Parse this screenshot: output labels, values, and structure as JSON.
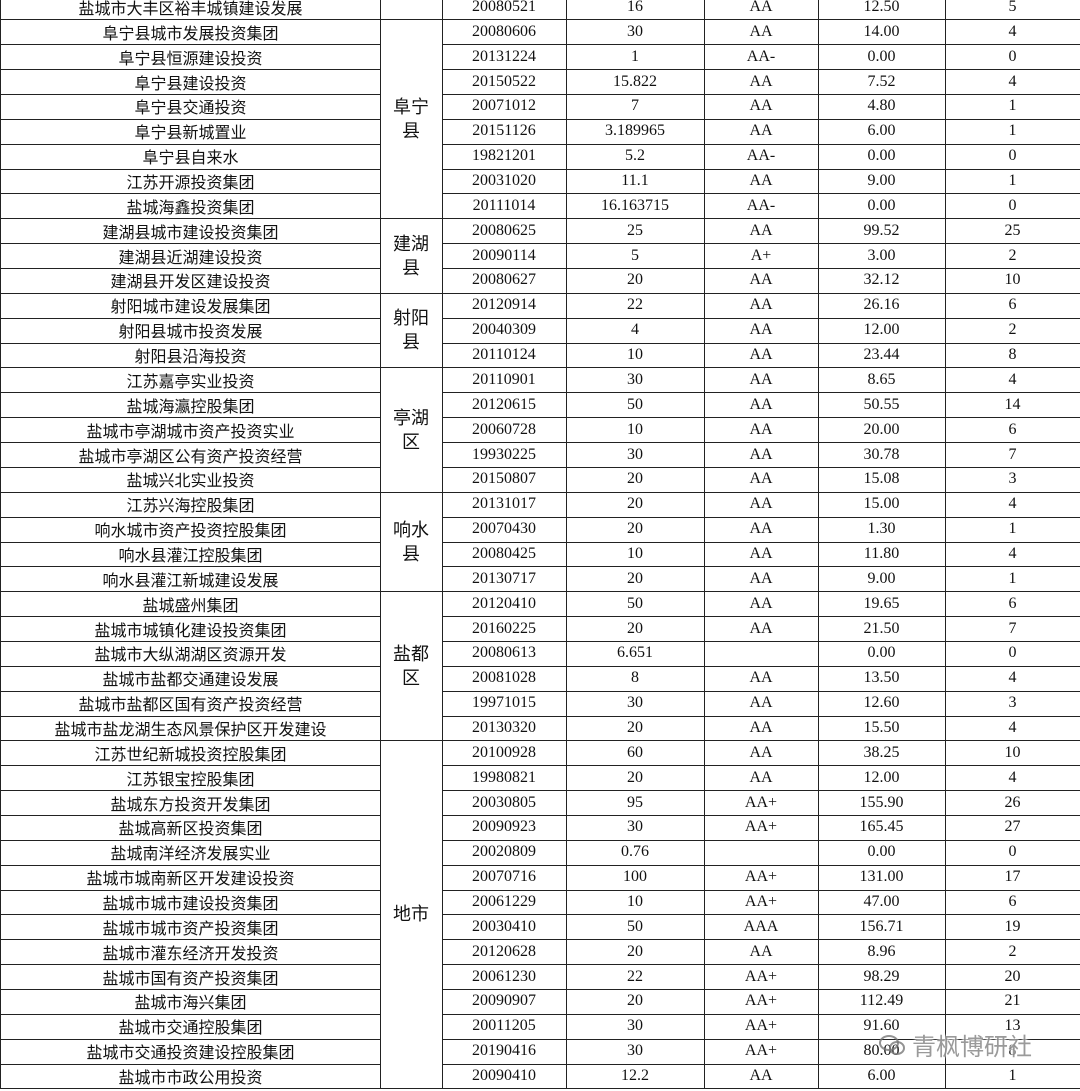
{
  "table": {
    "groups": [
      {
        "rows": [
          [
            "盐城市大丰区裕丰城镇建设发展",
            "20080521",
            "16",
            "AA",
            "12.50",
            "5"
          ]
        ]
      },
      {
        "region": "阜宁县",
        "rows": [
          [
            "阜宁县城市发展投资集团",
            "20080606",
            "30",
            "AA",
            "14.00",
            "4"
          ],
          [
            "阜宁县恒源建设投资",
            "20131224",
            "1",
            "AA-",
            "0.00",
            "0"
          ],
          [
            "阜宁县建设投资",
            "20150522",
            "15.822",
            "AA",
            "7.52",
            "4"
          ],
          [
            "阜宁县交通投资",
            "20071012",
            "7",
            "AA",
            "4.80",
            "1"
          ],
          [
            "阜宁县新城置业",
            "20151126",
            "3.189965",
            "AA",
            "6.00",
            "1"
          ],
          [
            "阜宁县自来水",
            "19821201",
            "5.2",
            "AA-",
            "0.00",
            "0"
          ],
          [
            "江苏开源投资集团",
            "20031020",
            "11.1",
            "AA",
            "9.00",
            "1"
          ],
          [
            "盐城海鑫投资集团",
            "20111014",
            "16.163715",
            "AA-",
            "0.00",
            "0"
          ]
        ]
      },
      {
        "region": "建湖县",
        "rows": [
          [
            "建湖县城市建设投资集团",
            "20080625",
            "25",
            "AA",
            "99.52",
            "25"
          ],
          [
            "建湖县近湖建设投资",
            "20090114",
            "5",
            "A+",
            "3.00",
            "2"
          ],
          [
            "建湖县开发区建设投资",
            "20080627",
            "20",
            "AA",
            "32.12",
            "10"
          ]
        ]
      },
      {
        "region": "射阳县",
        "rows": [
          [
            "射阳城市建设发展集团",
            "20120914",
            "22",
            "AA",
            "26.16",
            "6"
          ],
          [
            "射阳县城市投资发展",
            "20040309",
            "4",
            "AA",
            "12.00",
            "2"
          ],
          [
            "射阳县沿海投资",
            "20110124",
            "10",
            "AA",
            "23.44",
            "8"
          ]
        ]
      },
      {
        "region": "亭湖区",
        "rows": [
          [
            "江苏嘉亭实业投资",
            "20110901",
            "30",
            "AA",
            "8.65",
            "4"
          ],
          [
            "盐城海瀛控股集团",
            "20120615",
            "50",
            "AA",
            "50.55",
            "14"
          ],
          [
            "盐城市亭湖城市资产投资实业",
            "20060728",
            "10",
            "AA",
            "20.00",
            "6"
          ],
          [
            "盐城市亭湖区公有资产投资经营",
            "19930225",
            "30",
            "AA",
            "30.78",
            "7"
          ],
          [
            "盐城兴北实业投资",
            "20150807",
            "20",
            "AA",
            "15.08",
            "3"
          ]
        ]
      },
      {
        "region": "响水县",
        "rows": [
          [
            "江苏兴海控股集团",
            "20131017",
            "20",
            "AA",
            "15.00",
            "4"
          ],
          [
            "响水城市资产投资控股集团",
            "20070430",
            "20",
            "AA",
            "1.30",
            "1"
          ],
          [
            "响水县灌江控股集团",
            "20080425",
            "10",
            "AA",
            "11.80",
            "4"
          ],
          [
            "响水县灌江新城建设发展",
            "20130717",
            "20",
            "AA",
            "9.00",
            "1"
          ]
        ]
      },
      {
        "region": "盐都区",
        "rows": [
          [
            "盐城盛州集团",
            "20120410",
            "50",
            "AA",
            "19.65",
            "6"
          ],
          [
            "盐城市城镇化建设投资集团",
            "20160225",
            "20",
            "AA",
            "21.50",
            "7"
          ],
          [
            "盐城市大纵湖湖区资源开发",
            "20080613",
            "6.651",
            null,
            "0.00",
            "0"
          ],
          [
            "盐城市盐都交通建设发展",
            "20081028",
            "8",
            "AA",
            "13.50",
            "4"
          ],
          [
            "盐城市盐都区国有资产投资经营",
            "19971015",
            "30",
            "AA",
            "12.60",
            "3"
          ],
          [
            "盐城市盐龙湖生态风景保护区开发建设",
            "20130320",
            "20",
            "AA",
            "15.50",
            "4"
          ]
        ]
      },
      {
        "region": "地市",
        "rows": [
          [
            "江苏世纪新城投资控股集团",
            "20100928",
            "60",
            "AA",
            "38.25",
            "10"
          ],
          [
            "江苏银宝控股集团",
            "19980821",
            "20",
            "AA",
            "12.00",
            "4"
          ],
          [
            "盐城东方投资开发集团",
            "20030805",
            "95",
            "AA+",
            "155.90",
            "26"
          ],
          [
            "盐城高新区投资集团",
            "20090923",
            "30",
            "AA+",
            "165.45",
            "27"
          ],
          [
            "盐城南洋经济发展实业",
            "20020809",
            "0.76",
            null,
            "0.00",
            "0"
          ],
          [
            "盐城市城南新区开发建设投资",
            "20070716",
            "100",
            "AA+",
            "131.00",
            "17"
          ],
          [
            "盐城市城市建设投资集团",
            "20061229",
            "10",
            "AA+",
            "47.00",
            "6"
          ],
          [
            "盐城市城市资产投资集团",
            "20030410",
            "50",
            "AAA",
            "156.71",
            "19"
          ],
          [
            "盐城市灌东经济开发投资",
            "20120628",
            "20",
            "AA",
            "8.96",
            "2"
          ],
          [
            "盐城市国有资产投资集团",
            "20061230",
            "22",
            "AA+",
            "98.29",
            "20"
          ],
          [
            "盐城市海兴集团",
            "20090907",
            "20",
            "AA+",
            "112.49",
            "21"
          ],
          [
            "盐城市交通控股集团",
            "20011205",
            "30",
            "AA+",
            "91.60",
            "13"
          ],
          [
            "盐城市交通投资建设控股集团",
            "20190416",
            "30",
            "AA+",
            "80.00",
            "8"
          ],
          [
            "盐城市市政公用投资",
            "20090410",
            "12.2",
            "AA",
            "6.00",
            "1"
          ]
        ]
      }
    ]
  },
  "watermark": "青枫博研社"
}
